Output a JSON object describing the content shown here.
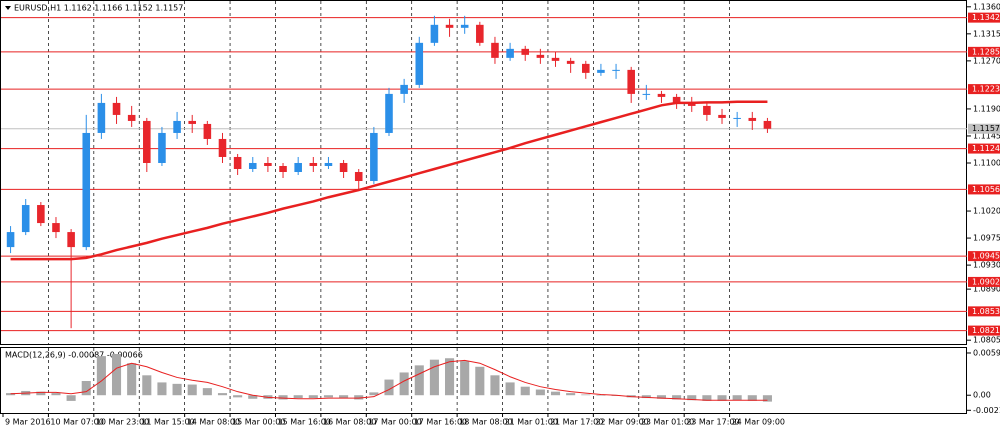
{
  "chart_data": [
    {
      "type": "candlestick",
      "title": "EURUSD,H1 1.1162 1.1166 1.1152 1.1157",
      "categories": [
        "9 Mar 2016",
        null,
        null,
        "10 Mar 07:00",
        null,
        null,
        "10 Mar 23:00",
        null,
        null,
        "11 Mar 15:00",
        null,
        null,
        "14 Mar 08:00",
        null,
        null,
        "15 Mar 00:00",
        null,
        null,
        "15 Mar 16:00",
        null,
        null,
        "16 Mar 08:00",
        null,
        null,
        "17 Mar 00:00",
        null,
        null,
        "17 Mar 16:00",
        null,
        null,
        "18 Mar 08:00",
        null,
        null,
        "21 Mar 01:00",
        null,
        null,
        "21 Mar 17:00",
        null,
        null,
        "22 Mar 09:00",
        null,
        null,
        "23 Mar 01:00",
        null,
        null,
        "23 Mar 17:00",
        null,
        null,
        "24 Mar 09:00",
        null,
        null
      ],
      "open": [
        1.096,
        1.0985,
        1.103,
        1.1,
        1.0985,
        1.096,
        1.115,
        1.12,
        1.118,
        1.117,
        1.11,
        1.115,
        1.117,
        1.1165,
        1.114,
        1.111,
        1.109,
        1.11,
        1.1095,
        1.1085,
        1.11,
        1.1095,
        1.11,
        1.1085,
        1.107,
        1.115,
        1.1215,
        1.123,
        1.13,
        1.133,
        1.1325,
        1.133,
        1.13,
        1.1275,
        1.129,
        1.128,
        1.1275,
        1.127,
        1.1265,
        1.125,
        1.1255,
        1.1255,
        1.1215,
        1.1215,
        1.121,
        1.12,
        1.1195,
        1.118,
        1.1175,
        1.1175,
        1.117
      ],
      "high": [
        1.0995,
        1.104,
        1.1035,
        1.101,
        1.099,
        1.118,
        1.1215,
        1.121,
        1.1195,
        1.1175,
        1.116,
        1.1185,
        1.118,
        1.117,
        1.115,
        1.1115,
        1.111,
        1.111,
        1.11,
        1.111,
        1.111,
        1.111,
        1.1105,
        1.109,
        1.116,
        1.1225,
        1.124,
        1.131,
        1.1345,
        1.134,
        1.1345,
        1.1335,
        1.131,
        1.13,
        1.1295,
        1.129,
        1.1285,
        1.1275,
        1.127,
        1.1265,
        1.1265,
        1.126,
        1.123,
        1.122,
        1.1215,
        1.121,
        1.12,
        1.119,
        1.1185,
        1.1185,
        1.1175
      ],
      "low": [
        1.095,
        1.098,
        1.0995,
        1.0975,
        1.0825,
        1.0955,
        1.114,
        1.1165,
        1.116,
        1.1085,
        1.1095,
        1.114,
        1.115,
        1.113,
        1.11,
        1.108,
        1.1085,
        1.1085,
        1.1075,
        1.108,
        1.1085,
        1.109,
        1.1075,
        1.1055,
        1.1065,
        1.1145,
        1.12,
        1.1225,
        1.1295,
        1.131,
        1.1315,
        1.1295,
        1.1265,
        1.127,
        1.127,
        1.1265,
        1.126,
        1.125,
        1.124,
        1.1245,
        1.124,
        1.12,
        1.1205,
        1.12,
        1.119,
        1.1185,
        1.117,
        1.1165,
        1.116,
        1.1155,
        1.115
      ],
      "close": [
        1.0985,
        1.103,
        1.1,
        1.0985,
        1.096,
        1.115,
        1.12,
        1.118,
        1.117,
        1.11,
        1.115,
        1.117,
        1.1165,
        1.114,
        1.111,
        1.109,
        1.11,
        1.1095,
        1.1085,
        1.11,
        1.1095,
        1.11,
        1.1085,
        1.107,
        1.115,
        1.1215,
        1.123,
        1.13,
        1.133,
        1.1325,
        1.133,
        1.13,
        1.1275,
        1.129,
        1.128,
        1.1275,
        1.127,
        1.1265,
        1.125,
        1.1255,
        1.1255,
        1.1215,
        1.1215,
        1.121,
        1.12,
        1.1195,
        1.118,
        1.1175,
        1.1175,
        1.117,
        1.1157
      ],
      "up_color": "#2b8fe8",
      "down_color": "#e8262c",
      "ma": {
        "color": "#e82020",
        "values": [
          1.094,
          1.094,
          1.094,
          1.094,
          1.094,
          1.0942,
          1.0948,
          1.0955,
          1.0961,
          1.0967,
          1.0974,
          1.098,
          1.0986,
          1.0992,
          1.0999,
          1.1005,
          1.1011,
          1.1017,
          1.1024,
          1.103,
          1.1036,
          1.1043,
          1.1049,
          1.1055,
          1.1062,
          1.1069,
          1.1076,
          1.1083,
          1.109,
          1.1097,
          1.1104,
          1.1111,
          1.1118,
          1.1125,
          1.1133,
          1.114,
          1.1147,
          1.1154,
          1.1161,
          1.1168,
          1.1175,
          1.1182,
          1.1189,
          1.1196,
          1.12,
          1.12,
          1.1201,
          1.1201,
          1.1202,
          1.1202,
          1.1202
        ]
      },
      "levels": [
        1.1342,
        1.1285,
        1.1223,
        1.1124,
        1.1056,
        1.0945,
        1.0902,
        1.0853,
        1.0821
      ],
      "level_color": "#e82020",
      "current_price": 1.1157,
      "ylim": [
        1.0797,
        1.1368
      ],
      "yticks": [
        {
          "value": 1.136,
          "label": "1.1360"
        },
        1.1315,
        {
          "value": 1.127,
          "label": "1.1270"
        },
        {
          "value": 1.119,
          "label": "1.1190"
        },
        1.1145,
        {
          "value": 1.11,
          "label": "1.1100"
        },
        {
          "value": 1.102,
          "label": "1.1020"
        },
        1.0975,
        {
          "value": 1.093,
          "label": "1.0930"
        },
        {
          "value": 1.089,
          "label": "1.0890"
        },
        1.0805
      ],
      "grid": true
    },
    {
      "type": "macd",
      "title": "MACD(12,26,9) -0.00087 -0.00066",
      "values": [
        0.0003,
        0.0006,
        0.0005,
        0.0003,
        -0.0008,
        0.002,
        0.0055,
        0.0058,
        0.0045,
        0.0028,
        0.0018,
        0.0016,
        0.0015,
        0.001,
        0.0003,
        -0.0003,
        -0.0005,
        -0.0005,
        -0.0006,
        -0.0004,
        -0.0004,
        -0.0003,
        -0.0004,
        -0.0006,
        0.0004,
        0.0022,
        0.0032,
        0.0042,
        0.005,
        0.0052,
        0.0048,
        0.004,
        0.0028,
        0.0018,
        0.0012,
        0.0008,
        0.0005,
        0.0003,
        0.0001,
        0.0,
        -0.0001,
        -0.0003,
        -0.0004,
        -0.0005,
        -0.0006,
        -0.0007,
        -0.0008,
        -0.0008,
        -0.0007,
        -0.0008,
        -0.0009
      ],
      "color": "#a8a8a8",
      "signal": {
        "color": "#e82020",
        "values": [
          0.0002,
          0.0003,
          0.0004,
          0.0004,
          0.0002,
          0.0005,
          0.002,
          0.0038,
          0.0045,
          0.004,
          0.0032,
          0.0025,
          0.0021,
          0.0018,
          0.0012,
          0.0005,
          0.0,
          -0.0003,
          -0.0004,
          -0.0005,
          -0.0005,
          -0.0004,
          -0.0004,
          -0.0004,
          -0.0002,
          0.0008,
          0.002,
          0.003,
          0.004,
          0.0047,
          0.0049,
          0.0045,
          0.0036,
          0.0026,
          0.0018,
          0.0012,
          0.0008,
          0.0005,
          0.0003,
          0.0001,
          0.0,
          -0.0002,
          -0.0003,
          -0.0004,
          -0.0005,
          -0.0006,
          -0.0007,
          -0.0007,
          -0.0007,
          -0.0007,
          -0.0007
        ]
      },
      "ylim": [
        -0.0025,
        0.0065
      ],
      "yticks": [
        0.00594,
        {
          "value": 0,
          "label": "0.00"
        },
        -0.00212
      ]
    }
  ]
}
